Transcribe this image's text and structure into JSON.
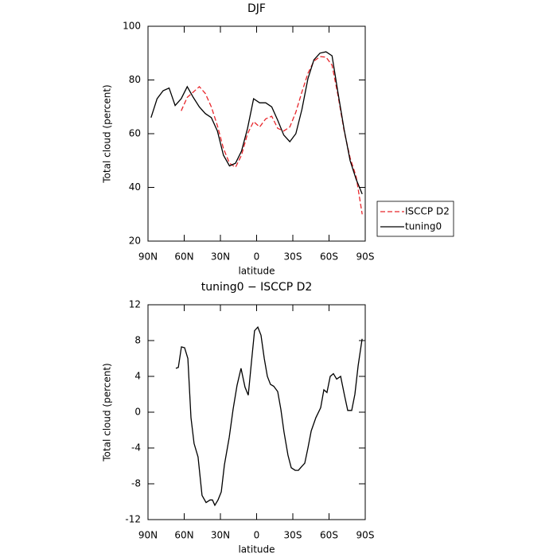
{
  "chart_data": [
    {
      "type": "line",
      "title": "DJF",
      "xlabel": "latitude",
      "ylabel": "Total cloud (percent)",
      "x": [
        87.5,
        82.5,
        77.5,
        72.5,
        67.5,
        62.5,
        57.5,
        52.5,
        47.5,
        42.5,
        37.5,
        32.5,
        27.5,
        22.5,
        17.5,
        12.5,
        7.5,
        2.5,
        -2.5,
        -7.5,
        -12.5,
        -17.5,
        -22.5,
        -27.5,
        -32.5,
        -37.5,
        -42.5,
        -47.5,
        -52.5,
        -57.5,
        -62.5,
        -67.5,
        -72.5,
        -77.5,
        -82.5,
        -87.5
      ],
      "series": [
        {
          "name": "ISCCP D2",
          "color": "#e8262b",
          "line_style": "dashed",
          "values": [
            null,
            null,
            null,
            null,
            null,
            68.5,
            73.5,
            75.5,
            77.5,
            75,
            70,
            63,
            54.5,
            49,
            47.5,
            52,
            60,
            64.5,
            62.5,
            65.5,
            66.5,
            62,
            61,
            62.5,
            68,
            75.5,
            82.5,
            87,
            88.7,
            88.5,
            85.5,
            74,
            61,
            51,
            44,
            30
          ]
        },
        {
          "name": "tuning0",
          "color": "#000000",
          "line_style": "solid",
          "values": [
            66,
            73,
            76,
            77,
            70.5,
            73,
            77.5,
            73.5,
            70,
            67.5,
            66,
            61,
            52,
            48,
            49,
            53.5,
            62,
            73,
            71.5,
            71.5,
            70,
            65,
            59.5,
            57,
            60,
            69,
            80.5,
            87.5,
            90,
            90.5,
            89,
            75,
            61.5,
            50,
            43,
            37.5
          ]
        }
      ],
      "xlim": [
        90,
        -90
      ],
      "xticks": [
        {
          "value": 90,
          "label": "90N"
        },
        {
          "value": 60,
          "label": "60N"
        },
        {
          "value": 30,
          "label": "30N"
        },
        0,
        {
          "value": -30,
          "label": "30S"
        },
        {
          "value": -60,
          "label": "60S"
        },
        {
          "value": -90,
          "label": "90S"
        }
      ],
      "ylim": [
        20,
        100
      ],
      "yticks": [
        20,
        40,
        60,
        80,
        100
      ],
      "legend": "outside-right"
    },
    {
      "type": "line",
      "title": "tuning0 − ISCCP D2",
      "xlabel": "latitude",
      "ylabel": "Total cloud (percent)",
      "x": [
        66.9,
        64.9,
        62.3,
        59.7,
        57.0,
        54.4,
        51.8,
        48.5,
        45.2,
        41.9,
        38.6,
        36.6,
        34.6,
        32.0,
        29.3,
        26.7,
        22.7,
        19.5,
        16.2,
        12.9,
        9.6,
        6.9,
        4.3,
        1.7,
        -1.0,
        -3.6,
        -6.3,
        -8.9,
        -11.5,
        -14.2,
        -17.5,
        -20.1,
        -22.7,
        -26.0,
        -28.7,
        -32.0,
        -34.6,
        -37.2,
        -39.9,
        -42.5,
        -45.2,
        -49.1,
        -53.1,
        -55.7,
        -58.3,
        -61.0,
        -63.6,
        -66.3,
        -69.6,
        -72.8,
        -75.5,
        -78.8,
        -81.4,
        -84.1,
        -87.4
      ],
      "series": [
        {
          "color": "#000000",
          "line_style": "solid",
          "values": [
            4.9,
            5,
            7.3,
            7.2,
            6,
            -0.6,
            -3.5,
            -5,
            -9.3,
            -10.1,
            -9.8,
            -9.8,
            -10.4,
            -9.8,
            -8.9,
            -5.9,
            -2.8,
            0.3,
            3,
            4.9,
            2.8,
            1.9,
            5.6,
            9.1,
            9.5,
            8.6,
            6,
            4,
            3.1,
            2.9,
            2.3,
            0.3,
            -2.2,
            -4.8,
            -6.2,
            -6.5,
            -6.5,
            -6.1,
            -5.7,
            -4,
            -2.1,
            -0.6,
            0.5,
            2.5,
            2.2,
            4,
            4.3,
            3.7,
            4,
            1.9,
            0.2,
            0.2,
            2,
            5.2,
            8.2
          ]
        }
      ],
      "xlim": [
        90,
        -90
      ],
      "xticks": [
        {
          "value": 90,
          "label": "90N"
        },
        {
          "value": 60,
          "label": "60N"
        },
        {
          "value": 30,
          "label": "30N"
        },
        0,
        {
          "value": -30,
          "label": "30S"
        },
        {
          "value": -60,
          "label": "60S"
        },
        {
          "value": -90,
          "label": "90S"
        }
      ],
      "ylim": [
        -12,
        12
      ],
      "yticks": [
        -12,
        -8,
        -4,
        0,
        4,
        8,
        12
      ]
    }
  ]
}
